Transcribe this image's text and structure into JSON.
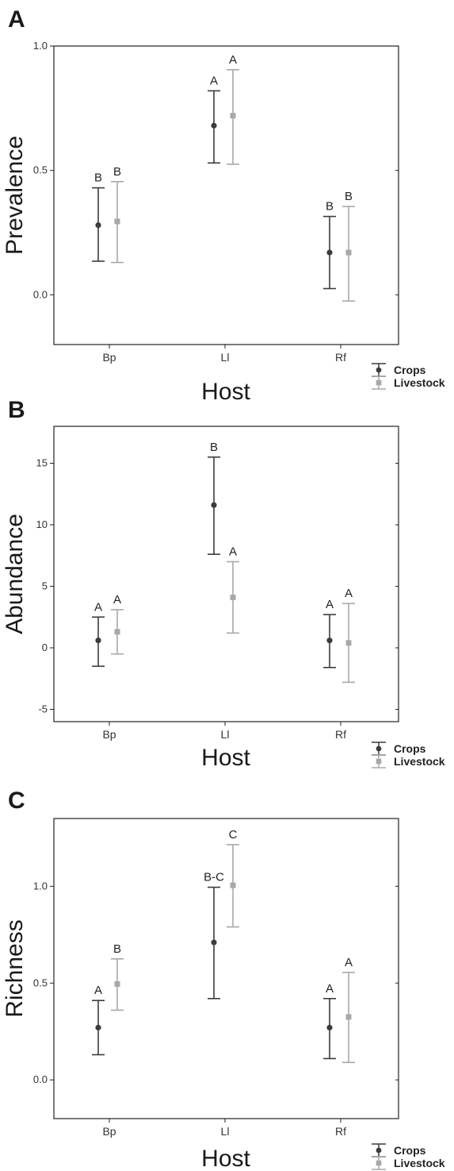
{
  "colors": {
    "crops": "#3c3c3c",
    "livestock": "#a8a8a8",
    "axis": "#222222"
  },
  "chart_data": [
    {
      "type": "scatter",
      "panel": "A",
      "xlabel": "Host",
      "ylabel": "Prevalence",
      "categories": [
        "Bp",
        "Ll",
        "Rf"
      ],
      "yticks": [
        "1.0",
        "0.5",
        "0.0"
      ],
      "ylim": [
        -0.2,
        1.0
      ],
      "legend": "right, below plot",
      "series": [
        {
          "name": "Crops",
          "marker": "circle",
          "color": "#3c3c3c",
          "values": [
            0.28,
            0.68,
            0.17
          ],
          "lower": [
            0.135,
            0.53,
            0.025
          ],
          "upper": [
            0.43,
            0.82,
            0.315
          ],
          "letters": [
            "B",
            "A",
            "B"
          ]
        },
        {
          "name": "Livestock",
          "marker": "square",
          "color": "#a8a8a8",
          "values": [
            0.295,
            0.72,
            0.17
          ],
          "lower": [
            0.13,
            0.525,
            -0.025
          ],
          "upper": [
            0.455,
            0.905,
            0.355
          ],
          "letters": [
            "B",
            "A",
            "B"
          ]
        }
      ]
    },
    {
      "type": "scatter",
      "panel": "B",
      "xlabel": "Host",
      "ylabel": "Abundance",
      "categories": [
        "Bp",
        "Ll",
        "Rf"
      ],
      "yticks": [
        "15",
        "10",
        "5",
        "0",
        "-5"
      ],
      "ylim": [
        -6,
        18
      ],
      "legend": "right, below plot",
      "series": [
        {
          "name": "Crops",
          "marker": "circle",
          "color": "#3c3c3c",
          "values": [
            0.6,
            11.6,
            0.6
          ],
          "lower": [
            -1.5,
            7.6,
            -1.6
          ],
          "upper": [
            2.5,
            15.5,
            2.7
          ],
          "letters": [
            "A",
            "B",
            "A"
          ]
        },
        {
          "name": "Livestock",
          "marker": "square",
          "color": "#a8a8a8",
          "values": [
            1.3,
            4.1,
            0.4
          ],
          "lower": [
            -0.5,
            1.2,
            -2.8
          ],
          "upper": [
            3.1,
            7.0,
            3.6
          ],
          "letters": [
            "A",
            "A",
            "A"
          ]
        }
      ]
    },
    {
      "type": "scatter",
      "panel": "C",
      "xlabel": "Host",
      "ylabel": "Richness",
      "categories": [
        "Bp",
        "Ll",
        "Rf"
      ],
      "yticks": [
        "1.0",
        "0.5",
        "0.0"
      ],
      "ylim": [
        -0.2,
        1.35
      ],
      "legend": "right, below plot",
      "series": [
        {
          "name": "Crops",
          "marker": "circle",
          "color": "#3c3c3c",
          "values": [
            0.27,
            0.71,
            0.27
          ],
          "lower": [
            0.13,
            0.42,
            0.11
          ],
          "upper": [
            0.41,
            0.995,
            0.42
          ],
          "letters": [
            "A",
            "B-C",
            "A"
          ]
        },
        {
          "name": "Livestock",
          "marker": "square",
          "color": "#a8a8a8",
          "values": [
            0.495,
            1.005,
            0.325
          ],
          "lower": [
            0.36,
            0.79,
            0.09
          ],
          "upper": [
            0.625,
            1.215,
            0.555
          ],
          "letters": [
            "B",
            "C",
            "A"
          ]
        }
      ]
    }
  ]
}
